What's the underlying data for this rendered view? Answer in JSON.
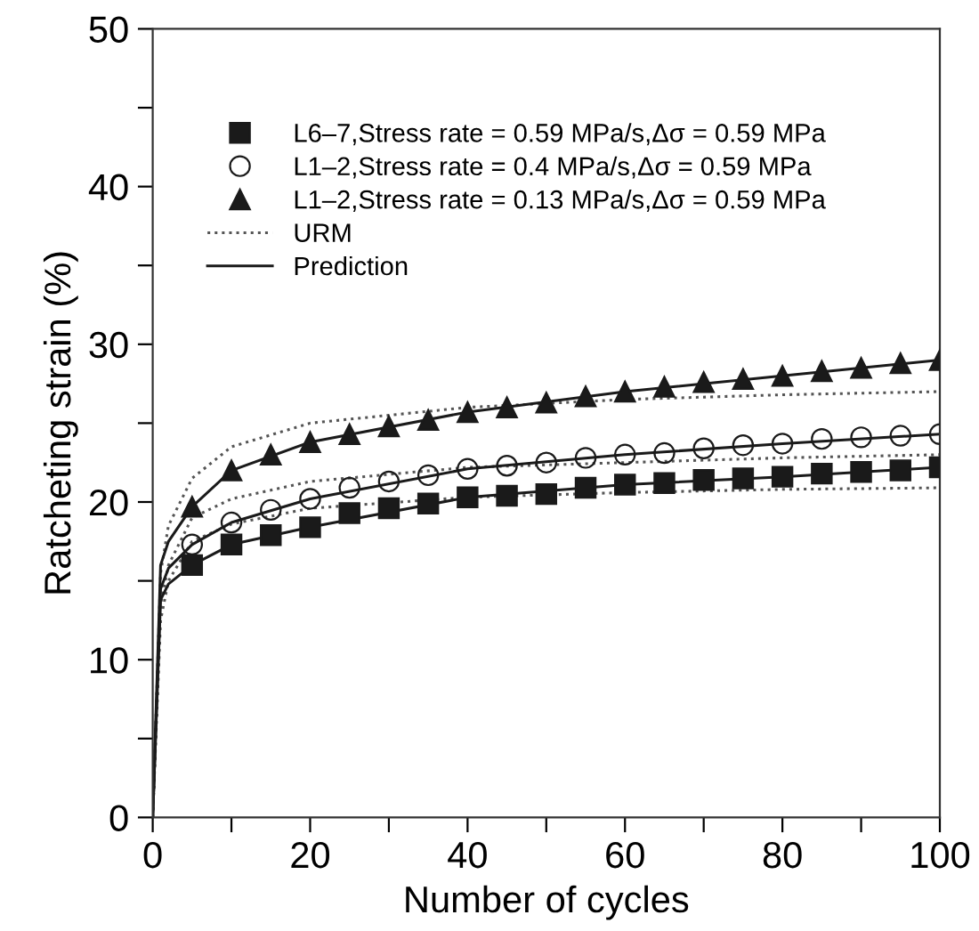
{
  "chart_data": {
    "type": "line",
    "xlabel": "Number of cycles",
    "ylabel": "Ratcheting strain (%)",
    "xlim": [
      0,
      100
    ],
    "ylim": [
      0,
      50
    ],
    "xticks": [
      0,
      {
        "value": 10,
        "label": null
      },
      20,
      {
        "value": 30,
        "label": null
      },
      40,
      {
        "value": 50,
        "label": null
      },
      60,
      {
        "value": 70,
        "label": null
      },
      80,
      {
        "value": 90,
        "label": null
      },
      100
    ],
    "yticks": [
      0,
      {
        "value": 5,
        "label": null
      },
      10,
      {
        "value": 15,
        "label": null
      },
      20,
      {
        "value": 25,
        "label": null
      },
      30,
      {
        "value": 35,
        "label": null
      },
      40,
      {
        "value": 45,
        "label": null
      },
      50
    ],
    "grid": false,
    "legend": "top left",
    "series": [
      {
        "name": "L6–7,Stress rate = 0.59 MPa/s,Δσ = 0.59 MPa",
        "type": "scatter",
        "marker": "square",
        "color": "#1a1a1a",
        "x": [
          5,
          10,
          15,
          20,
          25,
          30,
          35,
          40,
          45,
          50,
          55,
          60,
          65,
          70,
          75,
          80,
          85,
          90,
          95,
          100
        ],
        "values": [
          16.0,
          17.3,
          17.9,
          18.4,
          19.3,
          19.6,
          19.9,
          20.3,
          20.4,
          20.5,
          20.9,
          21.1,
          21.2,
          21.4,
          21.5,
          21.6,
          21.8,
          21.9,
          22.0,
          22.2
        ]
      },
      {
        "name": "L1–2,Stress rate = 0.4 MPa/s,Δσ = 0.59 MPa",
        "type": "scatter",
        "marker": "circle",
        "color": "#1a1a1a",
        "x": [
          5,
          10,
          15,
          20,
          25,
          30,
          35,
          40,
          45,
          50,
          55,
          60,
          65,
          70,
          75,
          80,
          85,
          90,
          95,
          100
        ],
        "values": [
          17.3,
          18.7,
          19.5,
          20.2,
          20.9,
          21.3,
          21.7,
          22.1,
          22.3,
          22.5,
          22.8,
          23.0,
          23.1,
          23.4,
          23.6,
          23.7,
          24.0,
          24.1,
          24.2,
          24.3
        ]
      },
      {
        "name": "L1–2,Stress rate = 0.13 MPa/s,Δσ = 0.59 MPa",
        "type": "scatter",
        "marker": "triangle",
        "color": "#1a1a1a",
        "x": [
          5,
          10,
          15,
          20,
          25,
          30,
          35,
          40,
          45,
          50,
          55,
          60,
          65,
          70,
          75,
          80,
          85,
          90,
          95,
          100
        ],
        "values": [
          19.7,
          22.0,
          23.0,
          23.8,
          24.3,
          24.8,
          25.2,
          25.7,
          26.0,
          26.3,
          26.7,
          27.0,
          27.3,
          27.6,
          27.8,
          28.0,
          28.3,
          28.5,
          28.8,
          29.0
        ]
      },
      {
        "name": "URM",
        "line_style": "dotted",
        "color": "#555555",
        "x": [
          0,
          1,
          2,
          5,
          10,
          20,
          40,
          60,
          80,
          100
        ],
        "values": [
          0,
          12.5,
          15.0,
          17.5,
          18.6,
          19.6,
          20.3,
          20.6,
          20.8,
          20.9
        ]
      },
      {
        "line_style": "dotted",
        "color": "#555555",
        "x": [
          0,
          1,
          2,
          5,
          10,
          20,
          40,
          60,
          80,
          100
        ],
        "values": [
          0,
          13.5,
          16.0,
          19.0,
          20.2,
          21.3,
          22.2,
          22.5,
          22.8,
          23.0
        ]
      },
      {
        "line_style": "dotted",
        "color": "#555555",
        "x": [
          0,
          1,
          2,
          5,
          10,
          20,
          40,
          60,
          80,
          100
        ],
        "values": [
          0,
          15.5,
          18.5,
          21.5,
          23.5,
          25.0,
          26.0,
          26.5,
          26.8,
          27.0
        ]
      },
      {
        "name": "Prediction",
        "line_style": "solid",
        "color": "#1a1a1a",
        "x": [
          0,
          1,
          2,
          5,
          10,
          20,
          40,
          60,
          80,
          100
        ],
        "values": [
          0,
          13.8,
          14.8,
          16.0,
          17.3,
          18.4,
          20.3,
          21.1,
          21.6,
          22.2
        ]
      },
      {
        "line_style": "solid",
        "color": "#1a1a1a",
        "x": [
          0,
          1,
          2,
          5,
          10,
          20,
          40,
          60,
          80,
          100
        ],
        "values": [
          0,
          14.5,
          15.8,
          17.3,
          18.7,
          20.2,
          22.1,
          23.0,
          23.7,
          24.3
        ]
      },
      {
        "line_style": "solid",
        "color": "#1a1a1a",
        "x": [
          0,
          1,
          2,
          5,
          10,
          20,
          40,
          60,
          80,
          100
        ],
        "values": [
          0,
          16.0,
          17.5,
          19.7,
          22.0,
          23.8,
          25.7,
          27.0,
          28.0,
          29.0
        ]
      }
    ]
  }
}
